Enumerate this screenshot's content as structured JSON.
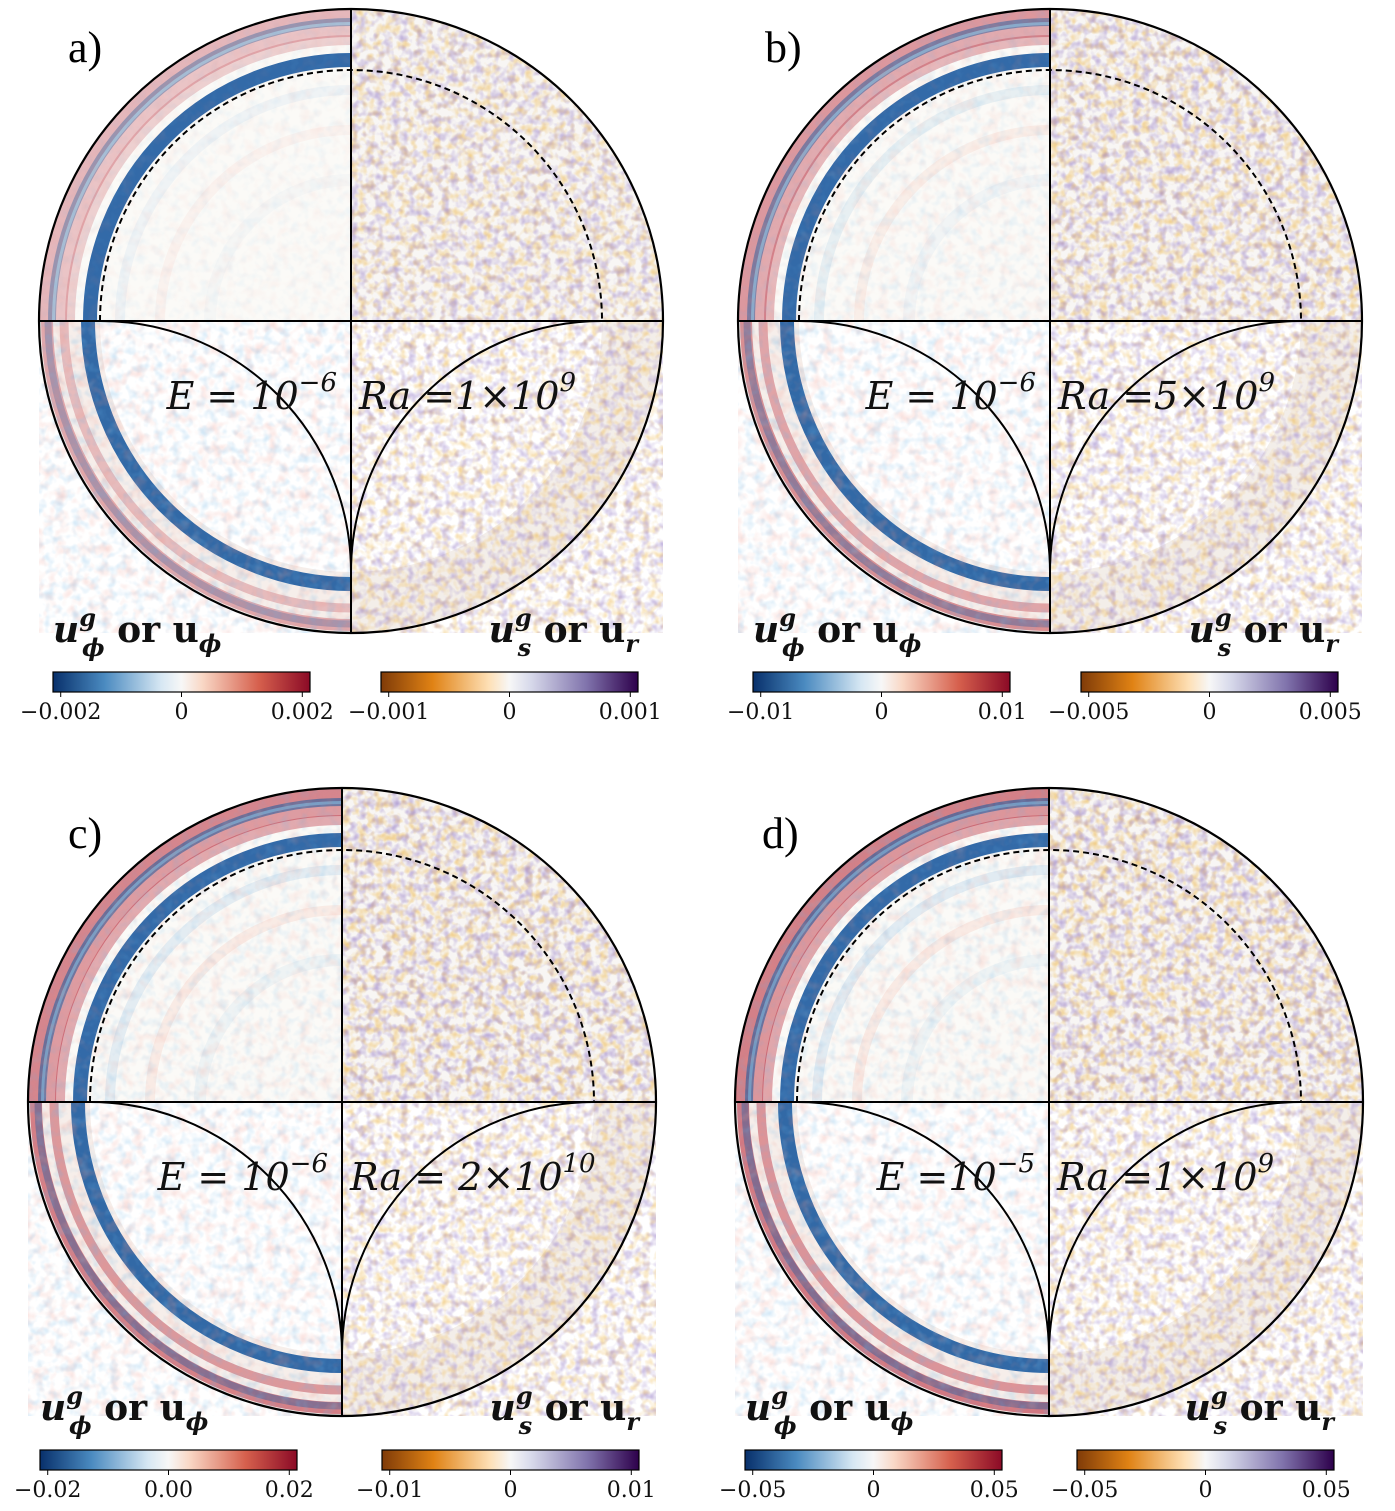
{
  "panels": [
    {
      "letter": "a)",
      "e_label": "E = 10",
      "e_exp": "−6",
      "ra_label": "Ra =1×10",
      "ra_exp": "9",
      "left_cbar": {
        "label": "u",
        "label_sup": "g",
        "label_sub": "ϕ",
        "label_or": " or u",
        "label_sub2": "ϕ",
        "ticks": [
          "−0.002",
          "0",
          "0.002"
        ],
        "colormap": "blue-white-red"
      },
      "right_cbar": {
        "label": "u",
        "label_sup": "g",
        "label_sub": "s",
        "label_or": " or u",
        "label_sub2": "r",
        "ticks": [
          "−0.001",
          "0",
          "0.001"
        ],
        "colormap": "orange-white-purple"
      },
      "intensity": 0.35
    },
    {
      "letter": "b)",
      "e_label": "E = 10",
      "e_exp": "−6",
      "ra_label": "Ra =5×10",
      "ra_exp": "9",
      "left_cbar": {
        "label": "u",
        "label_sup": "g",
        "label_sub": "ϕ",
        "label_or": " or u",
        "label_sub2": "ϕ",
        "ticks": [
          "−0.01",
          "0",
          "0.01"
        ],
        "colormap": "blue-white-red"
      },
      "right_cbar": {
        "label": "u",
        "label_sup": "g",
        "label_sub": "s",
        "label_or": " or u",
        "label_sub2": "r",
        "ticks": [
          "−0.005",
          "0",
          "0.005"
        ],
        "colormap": "orange-white-purple"
      },
      "intensity": 0.6
    },
    {
      "letter": "c)",
      "e_label": "E = 10",
      "e_exp": "−6",
      "ra_label": "Ra = 2×10",
      "ra_exp": "10",
      "left_cbar": {
        "label": "u",
        "label_sup": "g",
        "label_sub": "ϕ",
        "label_or": " or u",
        "label_sub2": "ϕ",
        "ticks": [
          "−0.02",
          "0.00",
          "0.02"
        ],
        "colormap": "blue-white-red"
      },
      "right_cbar": {
        "label": "u",
        "label_sup": "g",
        "label_sub": "s",
        "label_or": " or u",
        "label_sub2": "r",
        "ticks": [
          "−0.01",
          "0",
          "0.01"
        ],
        "colormap": "orange-white-purple"
      },
      "intensity": 0.75
    },
    {
      "letter": "d)",
      "e_label": "E =10",
      "e_exp": "−5",
      "ra_label": "Ra =1×10",
      "ra_exp": "9",
      "left_cbar": {
        "label": "u",
        "label_sup": "g",
        "label_sub": "ϕ",
        "label_or": " or u",
        "label_sub2": "ϕ",
        "ticks": [
          "−0.05",
          "0",
          "0.05"
        ],
        "colormap": "blue-white-red"
      },
      "right_cbar": {
        "label": "u",
        "label_sup": "g",
        "label_sub": "s",
        "label_or": " or u",
        "label_sub2": "r",
        "ticks": [
          "−0.05",
          "0",
          "0.05"
        ],
        "colormap": "orange-white-purple"
      },
      "intensity": 0.8
    }
  ],
  "colors": {
    "blue": "#1d5a9e",
    "red": "#b2182b",
    "orange": "#b35806",
    "purple": "#3f1a6b",
    "line": "#000000"
  }
}
